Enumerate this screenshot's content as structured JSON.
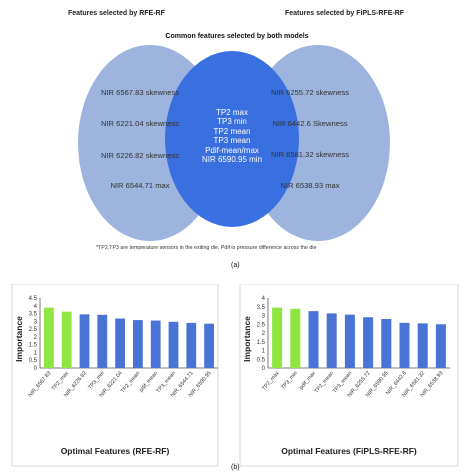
{
  "venn": {
    "left_title": "Features selected by RFE-RF",
    "right_title": "Features selected by FiPLS-RFE-RF",
    "common_title": "Common features selected by both models",
    "left_features": [
      "NIR 6567.83 skewness",
      "NIR 6221.04 skewness",
      "NIR 6226.82 skewness",
      "NIR 6544.71 max"
    ],
    "right_features": [
      "NIR 6255.72 skewness",
      "NIR 6442.6 Skewness",
      "NIR 6581.32 skewness",
      "NIR 6538.93 max"
    ],
    "common_features": [
      "TP2 max",
      "TP3 min",
      "TP2 mean",
      "TP3 mean",
      "Pdif-mean/max",
      "NIR 6590.95 min"
    ],
    "footnote": "*TP2,TP3 are temperature sensors in the exiting die, Pdif is pressure difference across the die",
    "caption": "(a)",
    "colors": {
      "left": "#9cb4de",
      "right": "#9cb4de",
      "center": "#3a6fe0"
    }
  },
  "caption_b": "(b)",
  "chart_data": [
    {
      "type": "bar",
      "xlabel": "Optimal Features (RFE-RF)",
      "ylabel": "Importance",
      "ylim": [
        0,
        4.5
      ],
      "yticks": [
        "0",
        "0.5",
        "1",
        "1.5",
        "2",
        "2.5",
        "3",
        "3.5",
        "4",
        "4.5"
      ],
      "categories": [
        "NIR_6567.83",
        "TP2_max",
        "NIR_6226.82",
        "TP3_min",
        "NIR_6221.04",
        "TP2_mean",
        "pdif_mean",
        "TP3_mean",
        "NIR_6544.71",
        "NIR_6590.95"
      ],
      "values": [
        3.88,
        3.62,
        3.45,
        3.42,
        3.18,
        3.08,
        3.05,
        2.97,
        2.9,
        2.85
      ],
      "bar_colors": [
        "#8fe640",
        "#8fe640",
        "#4a73d6",
        "#4a73d6",
        "#4a73d6",
        "#4a73d6",
        "#4a73d6",
        "#4a73d6",
        "#4a73d6",
        "#4a73d6"
      ],
      "grid": false
    },
    {
      "type": "bar",
      "xlabel": "Optimal Features (FiPLS-RFE-RF)",
      "ylabel": "Importance",
      "ylim": [
        0,
        4
      ],
      "yticks": [
        "0",
        "0.5",
        "1",
        "1.5",
        "2",
        "2.5",
        "3",
        "3.5",
        "4"
      ],
      "categories": [
        "TP2_max",
        "TP3_min",
        "pdif_max",
        "TP2_mean",
        "TP3_mean",
        "NIR_6255.72",
        "NIR_6590.95",
        "NIR_6442.6",
        "NIR_6581.32",
        "NIR_6538.93"
      ],
      "values": [
        3.45,
        3.38,
        3.25,
        3.12,
        3.05,
        2.9,
        2.8,
        2.58,
        2.55,
        2.5
      ],
      "bar_colors": [
        "#8fe640",
        "#8fe640",
        "#4a73d6",
        "#4a73d6",
        "#4a73d6",
        "#4a73d6",
        "#4a73d6",
        "#4a73d6",
        "#4a73d6",
        "#4a73d6"
      ],
      "grid": false
    }
  ]
}
